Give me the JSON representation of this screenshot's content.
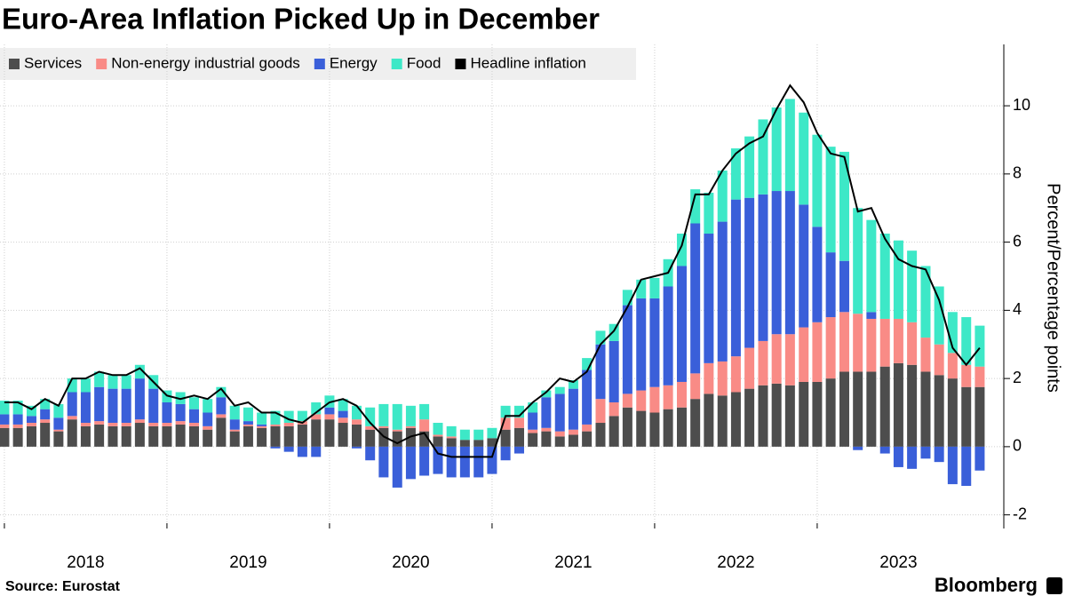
{
  "chart_data": {
    "type": "bar",
    "stacked": true,
    "title": "Euro-Area Inflation Picked Up in December",
    "y_label": "Percent/Percentage points",
    "source": "Source: Eurostat",
    "brand": "Bloomberg",
    "x": [
      2018,
      2018.083,
      2018.167,
      2018.25,
      2018.333,
      2018.417,
      2018.5,
      2018.583,
      2018.667,
      2018.75,
      2018.833,
      2018.917,
      2019,
      2019.083,
      2019.167,
      2019.25,
      2019.333,
      2019.417,
      2019.5,
      2019.583,
      2019.667,
      2019.75,
      2019.833,
      2019.917,
      2020,
      2020.083,
      2020.167,
      2020.25,
      2020.333,
      2020.417,
      2020.5,
      2020.583,
      2020.667,
      2020.75,
      2020.833,
      2020.917,
      2021,
      2021.083,
      2021.167,
      2021.25,
      2021.333,
      2021.417,
      2021.5,
      2021.583,
      2021.667,
      2021.75,
      2021.833,
      2021.917,
      2022,
      2022.083,
      2022.167,
      2022.25,
      2022.333,
      2022.417,
      2022.5,
      2022.583,
      2022.667,
      2022.75,
      2022.833,
      2022.917,
      2023,
      2023.083,
      2023.167,
      2023.25,
      2023.333,
      2023.417,
      2023.5,
      2023.583,
      2023.667,
      2023.75,
      2023.833,
      2023.917,
      2024
    ],
    "xlim": [
      2017.973,
      2024.148
    ],
    "xticks": [
      {
        "value": 2018,
        "label": "2018"
      },
      {
        "value": 2019,
        "label": "2019"
      },
      {
        "value": 2020,
        "label": "2020"
      },
      {
        "value": 2021,
        "label": "2021"
      },
      {
        "value": 2022,
        "label": "2022"
      },
      {
        "value": 2023,
        "label": "2023"
      }
    ],
    "ylim": [
      -2.4,
      11.8
    ],
    "yticks": [
      -2,
      0,
      2,
      4,
      6,
      8,
      10
    ],
    "grid": true,
    "series": [
      {
        "name": "Services",
        "color": "#4d4d4d",
        "values": [
          0.55,
          0.55,
          0.6,
          0.7,
          0.45,
          0.8,
          0.6,
          0.65,
          0.6,
          0.6,
          0.7,
          0.6,
          0.6,
          0.65,
          0.6,
          0.5,
          0.85,
          0.45,
          0.6,
          0.55,
          0.6,
          0.6,
          0.65,
          0.8,
          0.8,
          0.7,
          0.65,
          0.5,
          0.55,
          0.45,
          0.55,
          0.45,
          0.3,
          0.25,
          0.2,
          0.2,
          0.25,
          0.5,
          0.55,
          0.4,
          0.45,
          0.3,
          0.35,
          0.45,
          0.7,
          0.9,
          1.15,
          1.05,
          1.0,
          1.1,
          1.15,
          1.4,
          1.55,
          1.5,
          1.6,
          1.7,
          1.8,
          1.85,
          1.8,
          1.9,
          1.9,
          2.0,
          2.2,
          2.2,
          2.2,
          2.35,
          2.45,
          2.4,
          2.2,
          2.1,
          2.0,
          1.75,
          1.75
        ]
      },
      {
        "name": "Non-energy industrial goods",
        "color": "#f98b86",
        "values": [
          0.1,
          0.1,
          0.1,
          0.1,
          0.05,
          0.1,
          0.1,
          0.1,
          0.1,
          0.1,
          0.1,
          0.1,
          0.1,
          0.1,
          0.1,
          0.1,
          0.1,
          0.05,
          0.05,
          0.05,
          0.05,
          0.1,
          0.1,
          0.15,
          0.15,
          0.15,
          0.15,
          0.1,
          0.05,
          0.05,
          0.05,
          0.35,
          0.05,
          0.05,
          0.0,
          0.0,
          0.0,
          0.35,
          0.3,
          0.1,
          0.1,
          0.15,
          0.15,
          0.2,
          0.7,
          0.4,
          0.4,
          0.6,
          0.75,
          0.7,
          0.75,
          0.75,
          0.9,
          1.0,
          1.05,
          1.2,
          1.3,
          1.45,
          1.5,
          1.6,
          1.75,
          1.8,
          1.75,
          1.7,
          1.55,
          1.4,
          1.3,
          1.25,
          1.0,
          0.9,
          0.75,
          0.65,
          0.6
        ]
      },
      {
        "name": "Energy",
        "color": "#3a5fd9",
        "values": [
          0.3,
          0.3,
          0.2,
          0.3,
          0.35,
          0.7,
          0.9,
          1.0,
          1.0,
          1.0,
          1.2,
          1.0,
          0.6,
          0.5,
          0.4,
          0.4,
          0.5,
          0.3,
          0.1,
          0.05,
          -0.05,
          -0.15,
          -0.3,
          -0.3,
          0.2,
          0.2,
          -0.05,
          -0.4,
          -0.9,
          -1.2,
          -0.95,
          -0.85,
          -0.8,
          -0.9,
          -0.9,
          -0.9,
          -0.8,
          -0.4,
          -0.2,
          0.5,
          0.9,
          1.1,
          1.2,
          1.6,
          1.6,
          1.8,
          2.6,
          2.7,
          2.6,
          2.9,
          3.4,
          4.4,
          3.8,
          4.1,
          4.6,
          4.4,
          4.3,
          4.2,
          4.2,
          3.6,
          2.8,
          1.9,
          1.5,
          -0.1,
          0.2,
          -0.2,
          -0.6,
          -0.65,
          -0.35,
          -0.45,
          -1.1,
          -1.15,
          -0.7
        ]
      },
      {
        "name": "Food",
        "color": "#3de8c7",
        "values": [
          0.4,
          0.4,
          0.3,
          0.3,
          0.4,
          0.4,
          0.4,
          0.45,
          0.4,
          0.4,
          0.4,
          0.4,
          0.35,
          0.35,
          0.35,
          0.4,
          0.3,
          0.4,
          0.4,
          0.35,
          0.4,
          0.35,
          0.3,
          0.35,
          0.35,
          0.35,
          0.4,
          0.55,
          0.65,
          0.75,
          0.6,
          0.45,
          0.35,
          0.3,
          0.3,
          0.3,
          0.3,
          0.35,
          0.35,
          0.3,
          0.2,
          0.2,
          0.25,
          0.35,
          0.4,
          0.5,
          0.45,
          0.55,
          0.6,
          0.8,
          0.95,
          1.0,
          1.2,
          1.5,
          1.5,
          1.8,
          2.2,
          2.45,
          2.7,
          2.7,
          2.7,
          3.1,
          3.2,
          3.1,
          2.7,
          2.5,
          2.3,
          2.1,
          2.1,
          1.7,
          1.2,
          1.4,
          1.2
        ]
      },
      {
        "name": "Headline inflation",
        "color": "#000000",
        "type": "line",
        "values": [
          1.3,
          1.3,
          1.1,
          1.4,
          1.2,
          2.0,
          2.0,
          2.2,
          2.1,
          2.1,
          2.3,
          1.9,
          1.5,
          1.4,
          1.5,
          1.4,
          1.7,
          1.2,
          1.3,
          1.0,
          1.0,
          0.8,
          0.7,
          1.0,
          1.3,
          1.4,
          1.2,
          0.7,
          0.3,
          0.1,
          0.3,
          0.4,
          -0.2,
          -0.3,
          -0.3,
          -0.3,
          -0.3,
          0.9,
          0.9,
          1.3,
          1.6,
          2.0,
          1.9,
          2.2,
          3.0,
          3.4,
          4.1,
          4.9,
          5.0,
          5.1,
          5.9,
          7.4,
          7.4,
          8.1,
          8.6,
          8.9,
          9.1,
          9.9,
          10.6,
          10.1,
          9.2,
          8.6,
          8.5,
          6.9,
          7.0,
          6.1,
          5.5,
          5.3,
          5.2,
          4.3,
          2.9,
          2.4,
          2.9
        ]
      }
    ]
  }
}
